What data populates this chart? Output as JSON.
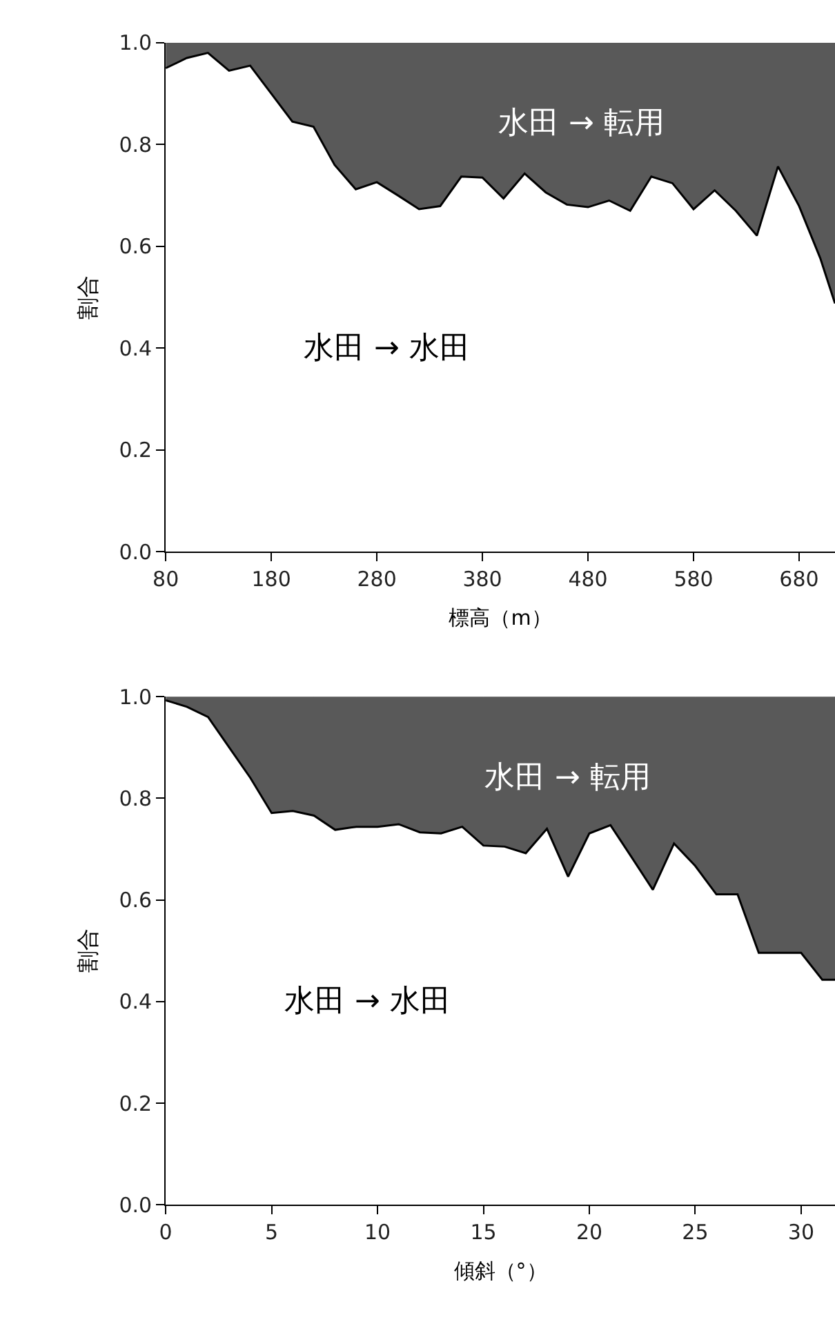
{
  "chart_data": [
    {
      "type": "area",
      "stacked": true,
      "xlabel": "標高（m）",
      "ylabel": "割合",
      "x": [
        80,
        100,
        120,
        140,
        160,
        180,
        200,
        220,
        240,
        260,
        280,
        300,
        320,
        340,
        360,
        380,
        400,
        420,
        440,
        460,
        480,
        500,
        520,
        540,
        560,
        580,
        600,
        620,
        640,
        660,
        680,
        700,
        714
      ],
      "series": [
        {
          "color": "#ffffff",
          "values": [
            0.95,
            0.97,
            0.98,
            0.945,
            0.955,
            0.9,
            0.845,
            0.835,
            0.76,
            0.712,
            0.726,
            0.7,
            0.673,
            0.679,
            0.737,
            0.735,
            0.694,
            0.743,
            0.706,
            0.682,
            0.677,
            0.69,
            0.67,
            0.737,
            0.724,
            0.673,
            0.71,
            0.67,
            0.621,
            0.757,
            0.679,
            0.577,
            0.488
          ]
        },
        {
          "color": "#595959",
          "values": [
            0.05,
            0.03,
            0.02,
            0.055,
            0.045,
            0.1,
            0.155,
            0.165,
            0.24,
            0.288,
            0.274,
            0.3,
            0.327,
            0.321,
            0.263,
            0.265,
            0.306,
            0.257,
            0.294,
            0.318,
            0.323,
            0.31,
            0.33,
            0.263,
            0.276,
            0.327,
            0.29,
            0.33,
            0.379,
            0.243,
            0.321,
            0.423,
            0.512
          ]
        }
      ],
      "xlim": [
        80,
        714
      ],
      "xticks": [
        80,
        180,
        280,
        380,
        480,
        580,
        680
      ],
      "ylim": [
        0,
        1
      ],
      "yticks": [
        {
          "value": 0,
          "label": "0.0"
        },
        {
          "value": 0.2,
          "label": "0.2"
        },
        {
          "value": 0.4,
          "label": "0.4"
        },
        {
          "value": 0.6,
          "label": "0.6"
        },
        {
          "value": 0.8,
          "label": "0.8"
        },
        {
          "value": 1,
          "label": "1.0"
        }
      ],
      "annotations": [
        "水田 → 転用",
        "水田 → 水田"
      ]
    },
    {
      "type": "area",
      "stacked": true,
      "xlabel": "傾斜（°）",
      "ylabel": "割合",
      "x": [
        0,
        1,
        2,
        3,
        4,
        5,
        6,
        7,
        8,
        9,
        10,
        11,
        12,
        13,
        14,
        15,
        16,
        17,
        18,
        19,
        20,
        21,
        22,
        23,
        24,
        25,
        26,
        27,
        28,
        29,
        30,
        31,
        31.6
      ],
      "series": [
        {
          "color": "#ffffff",
          "values": [
            0.993,
            0.98,
            0.96,
            0.9,
            0.84,
            0.771,
            0.775,
            0.766,
            0.738,
            0.744,
            0.744,
            0.749,
            0.733,
            0.731,
            0.744,
            0.707,
            0.705,
            0.692,
            0.74,
            0.646,
            0.731,
            0.747,
            0.684,
            0.62,
            0.711,
            0.667,
            0.611,
            0.611,
            0.496,
            0.496,
            0.496,
            0.443,
            0.443
          ]
        },
        {
          "color": "#595959",
          "values": [
            0.007,
            0.02,
            0.04,
            0.1,
            0.16,
            0.229,
            0.225,
            0.234,
            0.262,
            0.256,
            0.256,
            0.251,
            0.267,
            0.269,
            0.256,
            0.293,
            0.295,
            0.308,
            0.26,
            0.354,
            0.269,
            0.253,
            0.316,
            0.38,
            0.289,
            0.333,
            0.389,
            0.389,
            0.504,
            0.504,
            0.504,
            0.557,
            0.557
          ]
        }
      ],
      "xlim": [
        0,
        31.6
      ],
      "xticks": [
        0,
        5,
        10,
        15,
        20,
        25,
        30
      ],
      "ylim": [
        0,
        1
      ],
      "yticks": [
        {
          "value": 0,
          "label": "0.0"
        },
        {
          "value": 0.2,
          "label": "0.2"
        },
        {
          "value": 0.4,
          "label": "0.4"
        },
        {
          "value": 0.6,
          "label": "0.6"
        },
        {
          "value": 0.8,
          "label": "0.8"
        },
        {
          "value": 1,
          "label": "1.0"
        }
      ],
      "annotations": [
        "水田 → 転用",
        "水田 → 水田"
      ]
    }
  ]
}
